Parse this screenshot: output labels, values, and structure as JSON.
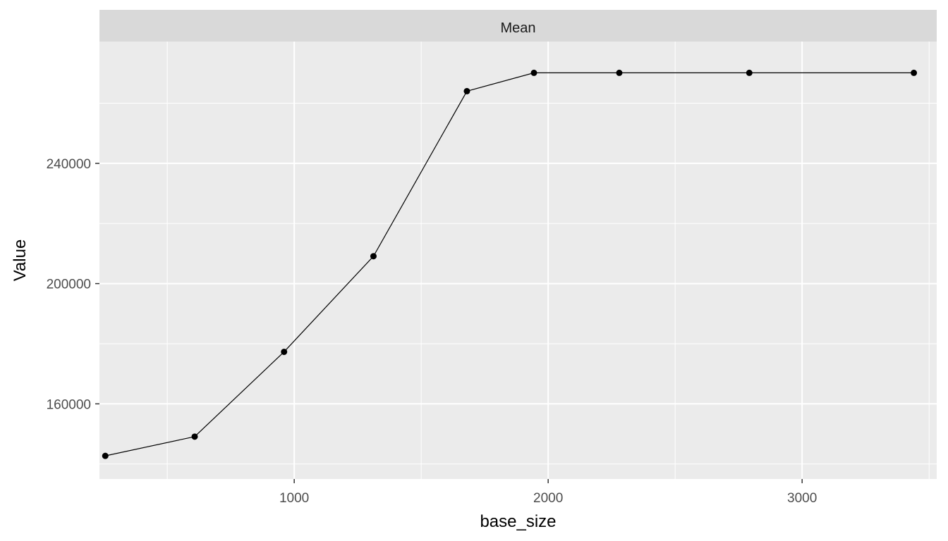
{
  "chart_data": {
    "type": "line",
    "facet_label": "Mean",
    "xlabel": "base_size",
    "ylabel": "Value",
    "x_ticks": [
      1000,
      2000,
      3000
    ],
    "y_ticks": [
      160000,
      200000,
      240000
    ],
    "xlim": [
      233,
      3530
    ],
    "ylim": [
      135000,
      280500
    ],
    "grid": true,
    "series": [
      {
        "x": [
          256,
          608,
          960,
          1312,
          1680,
          1944,
          2280,
          2792,
          3440
        ],
        "y": [
          142700,
          149100,
          177300,
          209100,
          264000,
          270100,
          270100,
          270100,
          270100
        ]
      }
    ],
    "colors": {
      "panel_bg": "#ebebeb",
      "strip_bg": "#d9d9d9",
      "grid": "#ffffff",
      "line": "#000000",
      "point": "#000000"
    }
  }
}
